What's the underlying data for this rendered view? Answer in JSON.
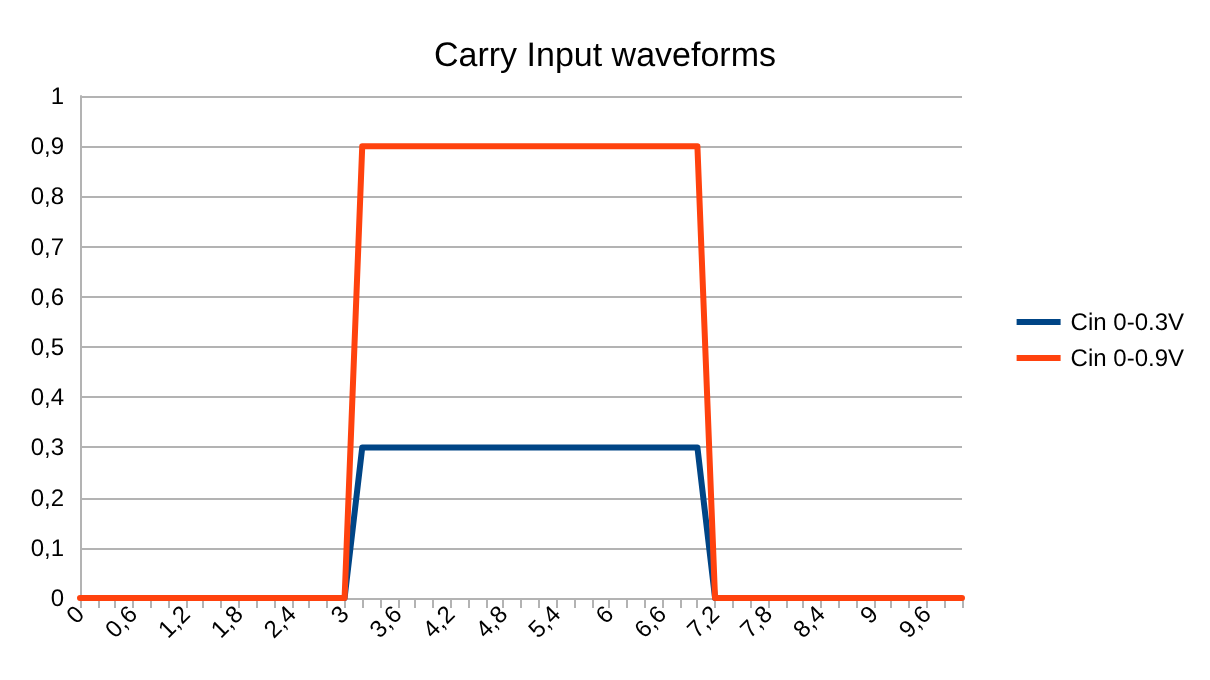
{
  "chart_data": {
    "type": "line",
    "title": "Carry Input waveforms",
    "categories": [
      "0",
      null,
      null,
      "0,6",
      null,
      null,
      "1,2",
      null,
      null,
      "1,8",
      null,
      null,
      "2,4",
      null,
      null,
      "3",
      null,
      null,
      "3,6",
      null,
      null,
      "4,2",
      null,
      null,
      "4,8",
      null,
      null,
      "5,4",
      null,
      null,
      "6",
      null,
      null,
      "6,6",
      null,
      null,
      "7,2",
      null,
      null,
      "7,8",
      null,
      null,
      "8,4",
      null,
      null,
      "9",
      null,
      null,
      "9,6",
      null,
      null
    ],
    "series": [
      {
        "name": "Cin 0-0.3V",
        "color": "#004586",
        "values": [
          null,
          null,
          null,
          null,
          null,
          null,
          null,
          null,
          null,
          null,
          null,
          null,
          null,
          null,
          null,
          0,
          0.3,
          0.3,
          0.3,
          0.3,
          0.3,
          0.3,
          0.3,
          0.3,
          0.3,
          0.3,
          0.3,
          0.3,
          0.3,
          0.3,
          0.3,
          0.3,
          0.3,
          0.3,
          0.3,
          0.3,
          0,
          null,
          null,
          null,
          null,
          null,
          null,
          null,
          null,
          null,
          null,
          null,
          null,
          null,
          null
        ]
      },
      {
        "name": "Cin 0-0.9V",
        "color": "#ff420e",
        "values": [
          0,
          0,
          0,
          0,
          0,
          0,
          0,
          0,
          0,
          0,
          0,
          0,
          0,
          0,
          0,
          0,
          0.9,
          0.9,
          0.9,
          0.9,
          0.9,
          0.9,
          0.9,
          0.9,
          0.9,
          0.9,
          0.9,
          0.9,
          0.9,
          0.9,
          0.9,
          0.9,
          0.9,
          0.9,
          0.9,
          0.9,
          0,
          0,
          0,
          0,
          0,
          0,
          0,
          0,
          0,
          0,
          0,
          0,
          0,
          0,
          0
        ]
      }
    ],
    "ylim": [
      0,
      1
    ],
    "yticks": [
      0,
      {
        "value": 0.1,
        "label": "0,1"
      },
      {
        "value": 0.2,
        "label": "0,2"
      },
      {
        "value": 0.3,
        "label": "0,3"
      },
      {
        "value": 0.4,
        "label": "0,4"
      },
      {
        "value": 0.5,
        "label": "0,5"
      },
      {
        "value": 0.6,
        "label": "0,6"
      },
      {
        "value": 0.7,
        "label": "0,7"
      },
      {
        "value": 0.8,
        "label": "0,8"
      },
      {
        "value": 0.9,
        "label": "0,9"
      },
      1
    ],
    "grid": "y",
    "legend": "right",
    "marker": "none",
    "line_style": "solid"
  }
}
